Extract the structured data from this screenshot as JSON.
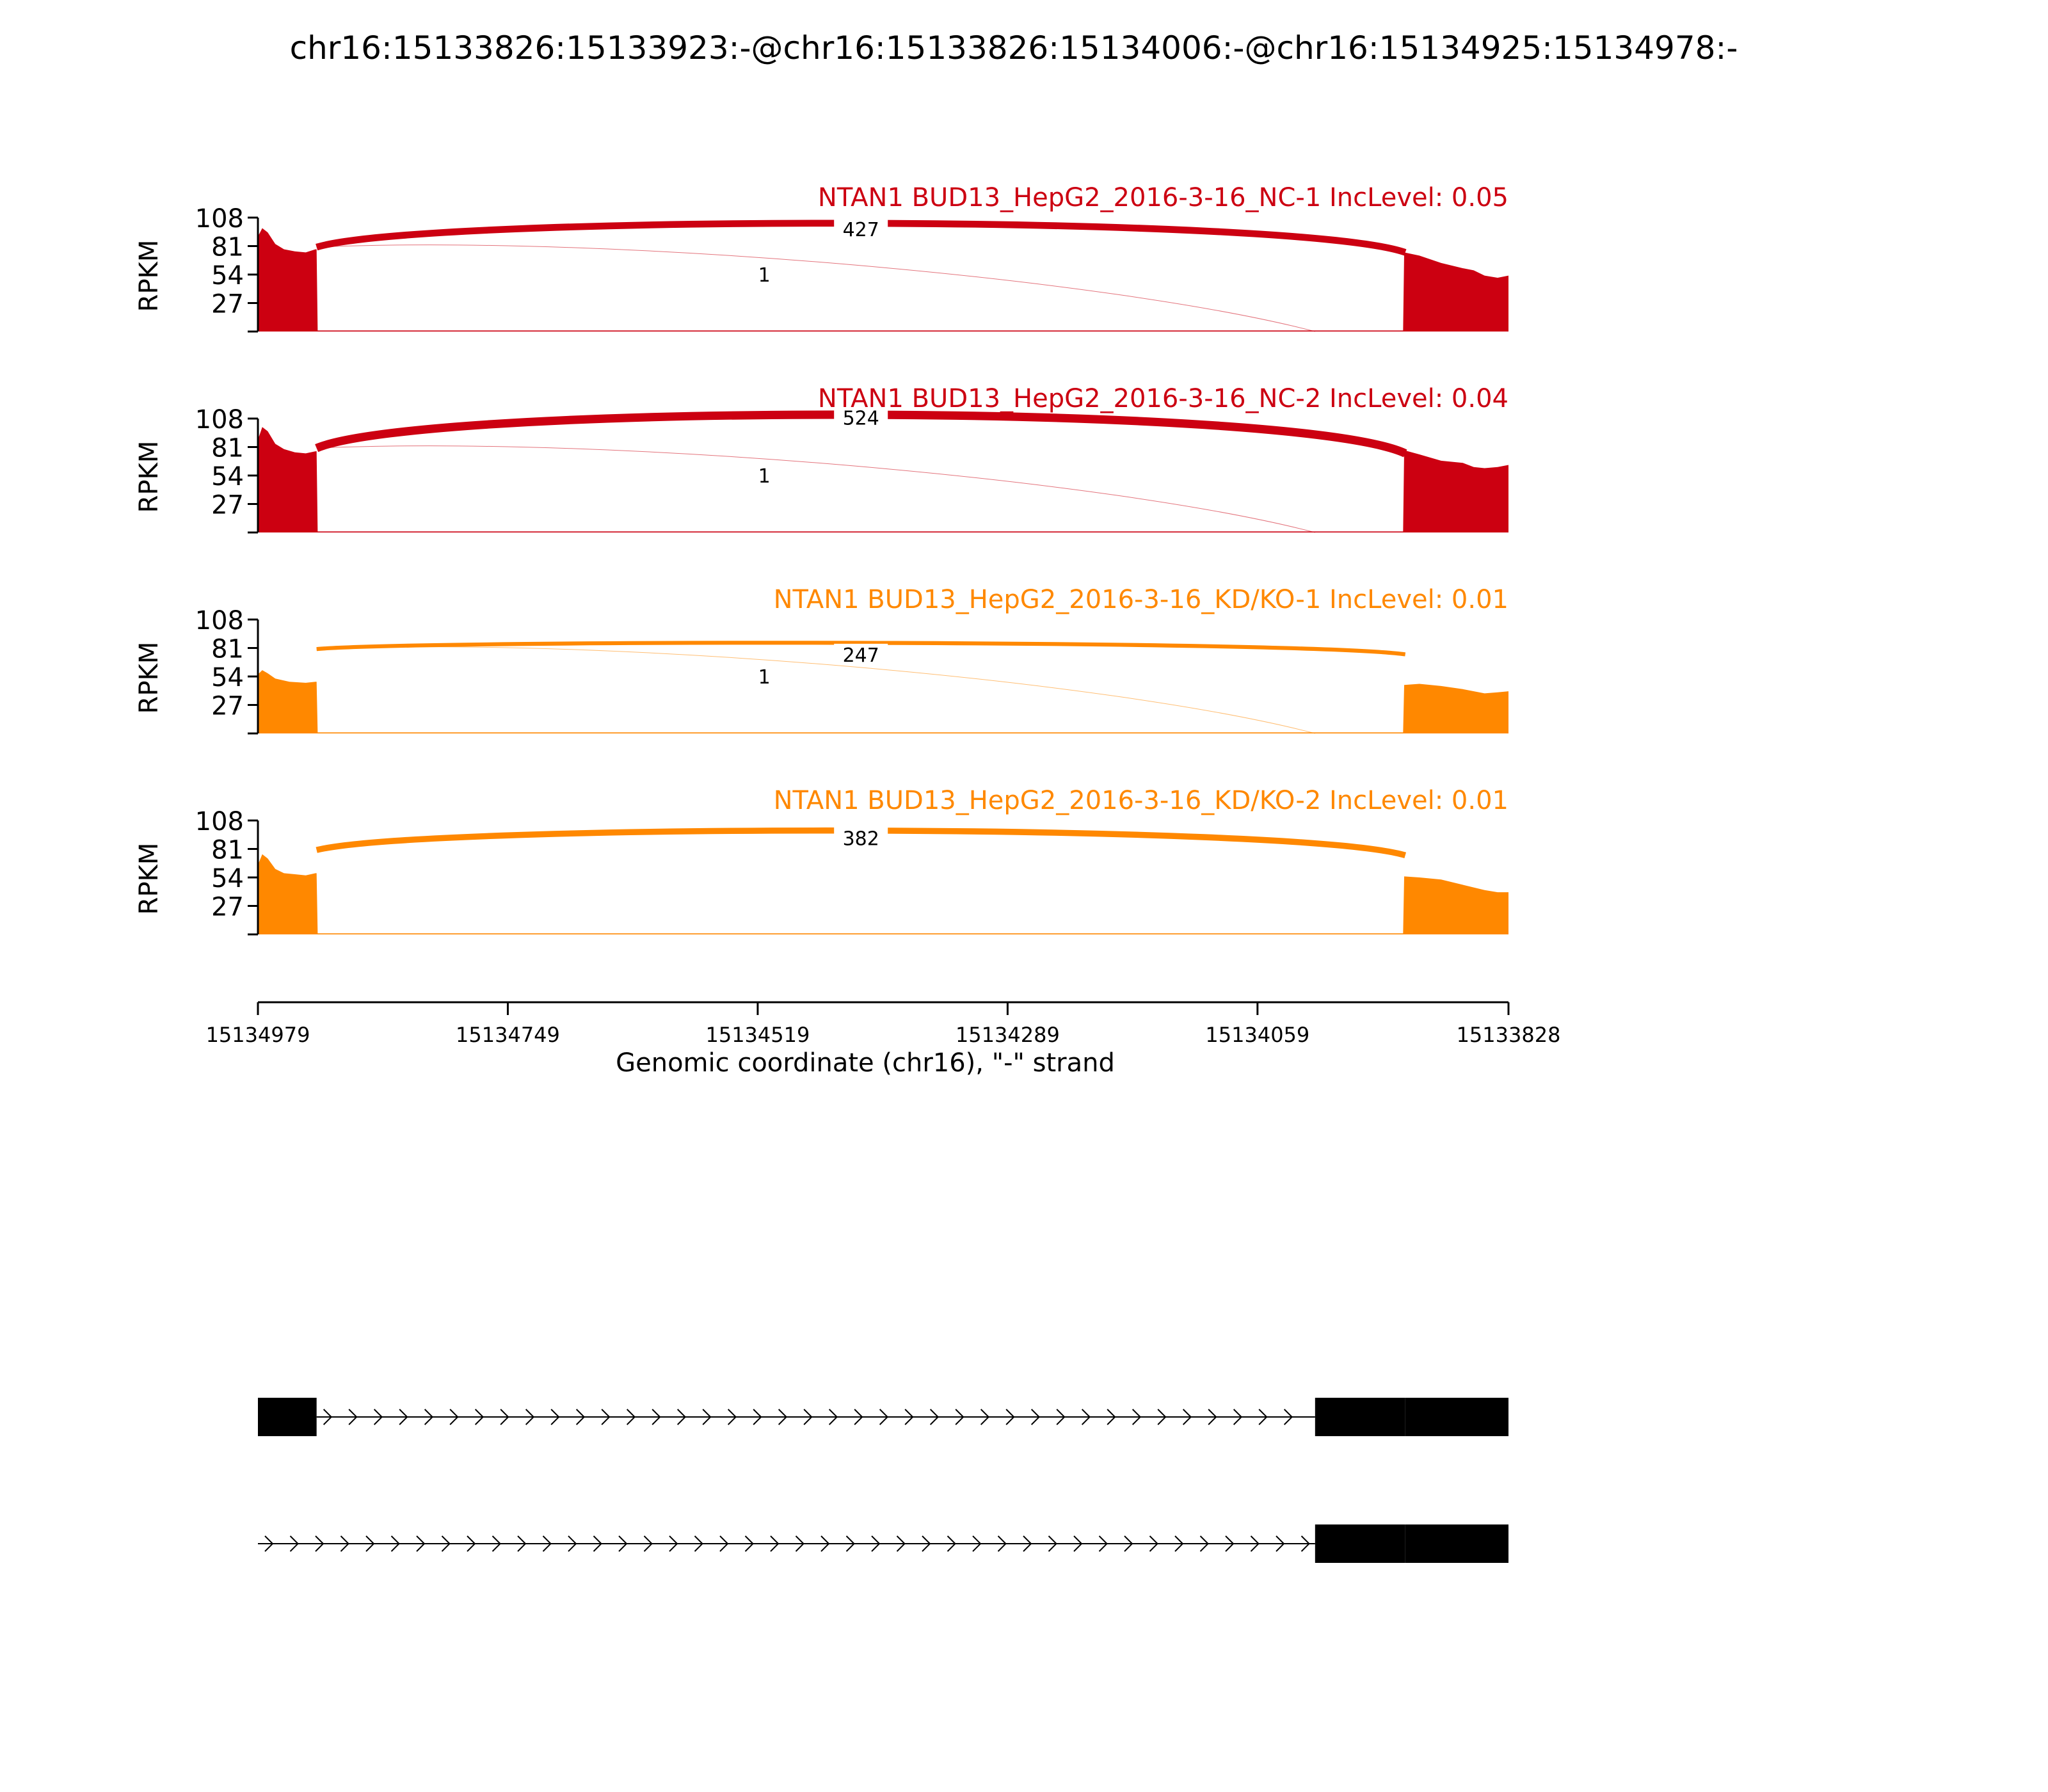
{
  "title": "chr16:15133826:15133923:-@chr16:15133826:15134006:-@chr16:15134925:15134978:-",
  "colors": {
    "nc": "#cc0011",
    "kd": "#ff8800",
    "axis": "#000000",
    "exon": "#000000"
  },
  "chart_data": {
    "type": "area",
    "subtype": "sashimi",
    "title": "chr16:15133826:15133923:-@chr16:15133826:15134006:-@chr16:15134925:15134978:-",
    "xlabel": "Genomic coordinate (chr16), \"-\" strand",
    "ylabel": "RPKM",
    "ylim": [
      0,
      108
    ],
    "xlim": [
      15134979,
      15133828
    ],
    "x_ticks": [
      15134979,
      15134749,
      15134519,
      15134289,
      15134059,
      15133828
    ],
    "x_tick_labels": [
      "15134979",
      "15134749",
      "15134519",
      "15134289",
      "15134059",
      "15133828"
    ],
    "y_ticks": [
      27,
      54,
      81,
      108
    ],
    "y_tick_labels": [
      "27",
      "54",
      "81",
      "108"
    ],
    "grid": false,
    "tracks": [
      {
        "label": "NTAN1 BUD13_HepG2_2016-3-16_NC-1 IncLevel: 0.05",
        "color_key": "nc",
        "coverage": [
          {
            "x": 15134979,
            "y": 90
          },
          {
            "x": 15134975,
            "y": 98
          },
          {
            "x": 15134970,
            "y": 94
          },
          {
            "x": 15134963,
            "y": 83
          },
          {
            "x": 15134955,
            "y": 78
          },
          {
            "x": 15134945,
            "y": 76
          },
          {
            "x": 15134935,
            "y": 75
          },
          {
            "x": 15134926,
            "y": 78
          },
          {
            "x": 15134925,
            "y": 78
          },
          {
            "x": 15134924,
            "y": 1
          },
          {
            "x": 15133925,
            "y": 1
          },
          {
            "x": 15133924,
            "y": 75
          },
          {
            "x": 15133910,
            "y": 72
          },
          {
            "x": 15133890,
            "y": 65
          },
          {
            "x": 15133870,
            "y": 60
          },
          {
            "x": 15133860,
            "y": 58
          },
          {
            "x": 15133850,
            "y": 53
          },
          {
            "x": 15133838,
            "y": 51
          },
          {
            "x": 15133828,
            "y": 53
          }
        ],
        "junctions": [
          {
            "from": 15134925,
            "to": 15133923,
            "count": "427",
            "side": "above"
          },
          {
            "from": 15134925,
            "to": 15134006,
            "count": "1",
            "side": "below"
          }
        ]
      },
      {
        "label": "NTAN1 BUD13_HepG2_2016-3-16_NC-2 IncLevel: 0.04",
        "color_key": "nc",
        "coverage": [
          {
            "x": 15134979,
            "y": 88
          },
          {
            "x": 15134975,
            "y": 100
          },
          {
            "x": 15134970,
            "y": 96
          },
          {
            "x": 15134963,
            "y": 84
          },
          {
            "x": 15134955,
            "y": 79
          },
          {
            "x": 15134945,
            "y": 76
          },
          {
            "x": 15134935,
            "y": 75
          },
          {
            "x": 15134926,
            "y": 77
          },
          {
            "x": 15134925,
            "y": 77
          },
          {
            "x": 15134924,
            "y": 1
          },
          {
            "x": 15133925,
            "y": 1
          },
          {
            "x": 15133924,
            "y": 78
          },
          {
            "x": 15133910,
            "y": 74
          },
          {
            "x": 15133890,
            "y": 68
          },
          {
            "x": 15133870,
            "y": 66
          },
          {
            "x": 15133860,
            "y": 62
          },
          {
            "x": 15133850,
            "y": 61
          },
          {
            "x": 15133838,
            "y": 62
          },
          {
            "x": 15133828,
            "y": 64
          }
        ],
        "junctions": [
          {
            "from": 15134925,
            "to": 15133923,
            "count": "524",
            "side": "above"
          },
          {
            "from": 15134925,
            "to": 15134006,
            "count": "1",
            "side": "below"
          }
        ]
      },
      {
        "label": "NTAN1 BUD13_HepG2_2016-3-16_KD/KO-1 IncLevel: 0.01",
        "color_key": "kd",
        "coverage": [
          {
            "x": 15134979,
            "y": 56
          },
          {
            "x": 15134975,
            "y": 60
          },
          {
            "x": 15134970,
            "y": 57
          },
          {
            "x": 15134963,
            "y": 52
          },
          {
            "x": 15134950,
            "y": 49
          },
          {
            "x": 15134935,
            "y": 48
          },
          {
            "x": 15134926,
            "y": 49
          },
          {
            "x": 15134925,
            "y": 49
          },
          {
            "x": 15134924,
            "y": 1
          },
          {
            "x": 15133925,
            "y": 1
          },
          {
            "x": 15133924,
            "y": 46
          },
          {
            "x": 15133910,
            "y": 47
          },
          {
            "x": 15133890,
            "y": 45
          },
          {
            "x": 15133870,
            "y": 42
          },
          {
            "x": 15133850,
            "y": 38
          },
          {
            "x": 15133838,
            "y": 39
          },
          {
            "x": 15133828,
            "y": 40
          }
        ],
        "junctions": [
          {
            "from": 15134925,
            "to": 15133923,
            "count": "247",
            "side": "above"
          },
          {
            "from": 15134925,
            "to": 15134006,
            "count": "1",
            "side": "below"
          }
        ]
      },
      {
        "label": "NTAN1 BUD13_HepG2_2016-3-16_KD/KO-2 IncLevel: 0.01",
        "color_key": "kd",
        "coverage": [
          {
            "x": 15134979,
            "y": 66
          },
          {
            "x": 15134975,
            "y": 76
          },
          {
            "x": 15134970,
            "y": 72
          },
          {
            "x": 15134963,
            "y": 62
          },
          {
            "x": 15134955,
            "y": 58
          },
          {
            "x": 15134945,
            "y": 57
          },
          {
            "x": 15134935,
            "y": 56
          },
          {
            "x": 15134926,
            "y": 58
          },
          {
            "x": 15134925,
            "y": 58
          },
          {
            "x": 15134924,
            "y": 1
          },
          {
            "x": 15133925,
            "y": 1
          },
          {
            "x": 15133924,
            "y": 55
          },
          {
            "x": 15133910,
            "y": 54
          },
          {
            "x": 15133890,
            "y": 52
          },
          {
            "x": 15133870,
            "y": 47
          },
          {
            "x": 15133850,
            "y": 42
          },
          {
            "x": 15133838,
            "y": 40
          },
          {
            "x": 15133828,
            "y": 40
          }
        ],
        "junctions": [
          {
            "from": 15134925,
            "to": 15133923,
            "count": "382",
            "side": "above"
          }
        ]
      }
    ],
    "gene_models": [
      {
        "exons": [
          [
            15134979,
            15134925
          ],
          [
            15134006,
            15133923
          ],
          [
            15133923,
            15133828
          ]
        ],
        "intron": [
          15134925,
          15134006
        ]
      },
      {
        "exons": [
          [
            15134006,
            15133923
          ],
          [
            15133923,
            15133828
          ]
        ],
        "intron": [
          15134979,
          15134006
        ]
      }
    ]
  }
}
